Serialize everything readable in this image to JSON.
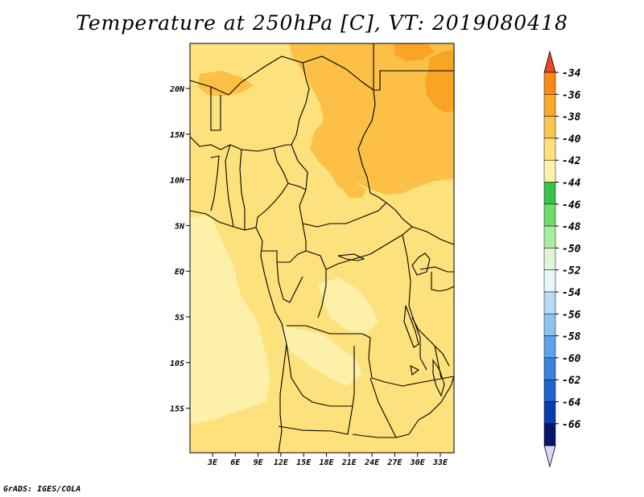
{
  "title": "Temperature at 250hPa [C], VT: 2019080418",
  "credit": "GrADS: IGES/COLA",
  "colors": {
    "fill_main": "#fde17d",
    "fill_orange": "#fbc045",
    "fill_dark": "#f9a423",
    "fill_light": "#fdf0a9",
    "border": "#000000"
  },
  "map": {
    "lat_labels": [
      "20N",
      "15N",
      "10N",
      "5N",
      "EQ",
      "5S",
      "10S",
      "15S"
    ],
    "lon_labels": [
      "3E",
      "6E",
      "9E",
      "12E",
      "15E",
      "18E",
      "21E",
      "24E",
      "27E",
      "30E",
      "33E"
    ]
  },
  "colorbar": {
    "labels": [
      "-34",
      "-36",
      "-38",
      "-40",
      "-42",
      "-44",
      "-46",
      "-48",
      "-50",
      "-52",
      "-54",
      "-56",
      "-58",
      "-60",
      "-62",
      "-64",
      "-66"
    ],
    "colors": [
      "#f25a10",
      "#f98b12",
      "#fba82c",
      "#fbc752",
      "#fde17d",
      "#fdf2aa",
      "#38c24a",
      "#6edc6c",
      "#a9eea3",
      "#dff6d8",
      "#e8f6fb",
      "#b6dbf5",
      "#8ec2ef",
      "#5ea3e8",
      "#3a84df",
      "#1c63cf",
      "#0c3bb0",
      "#08156b"
    ],
    "top_arrow": "#e8472a",
    "bottom_arrow": "#dcd6f2"
  }
}
